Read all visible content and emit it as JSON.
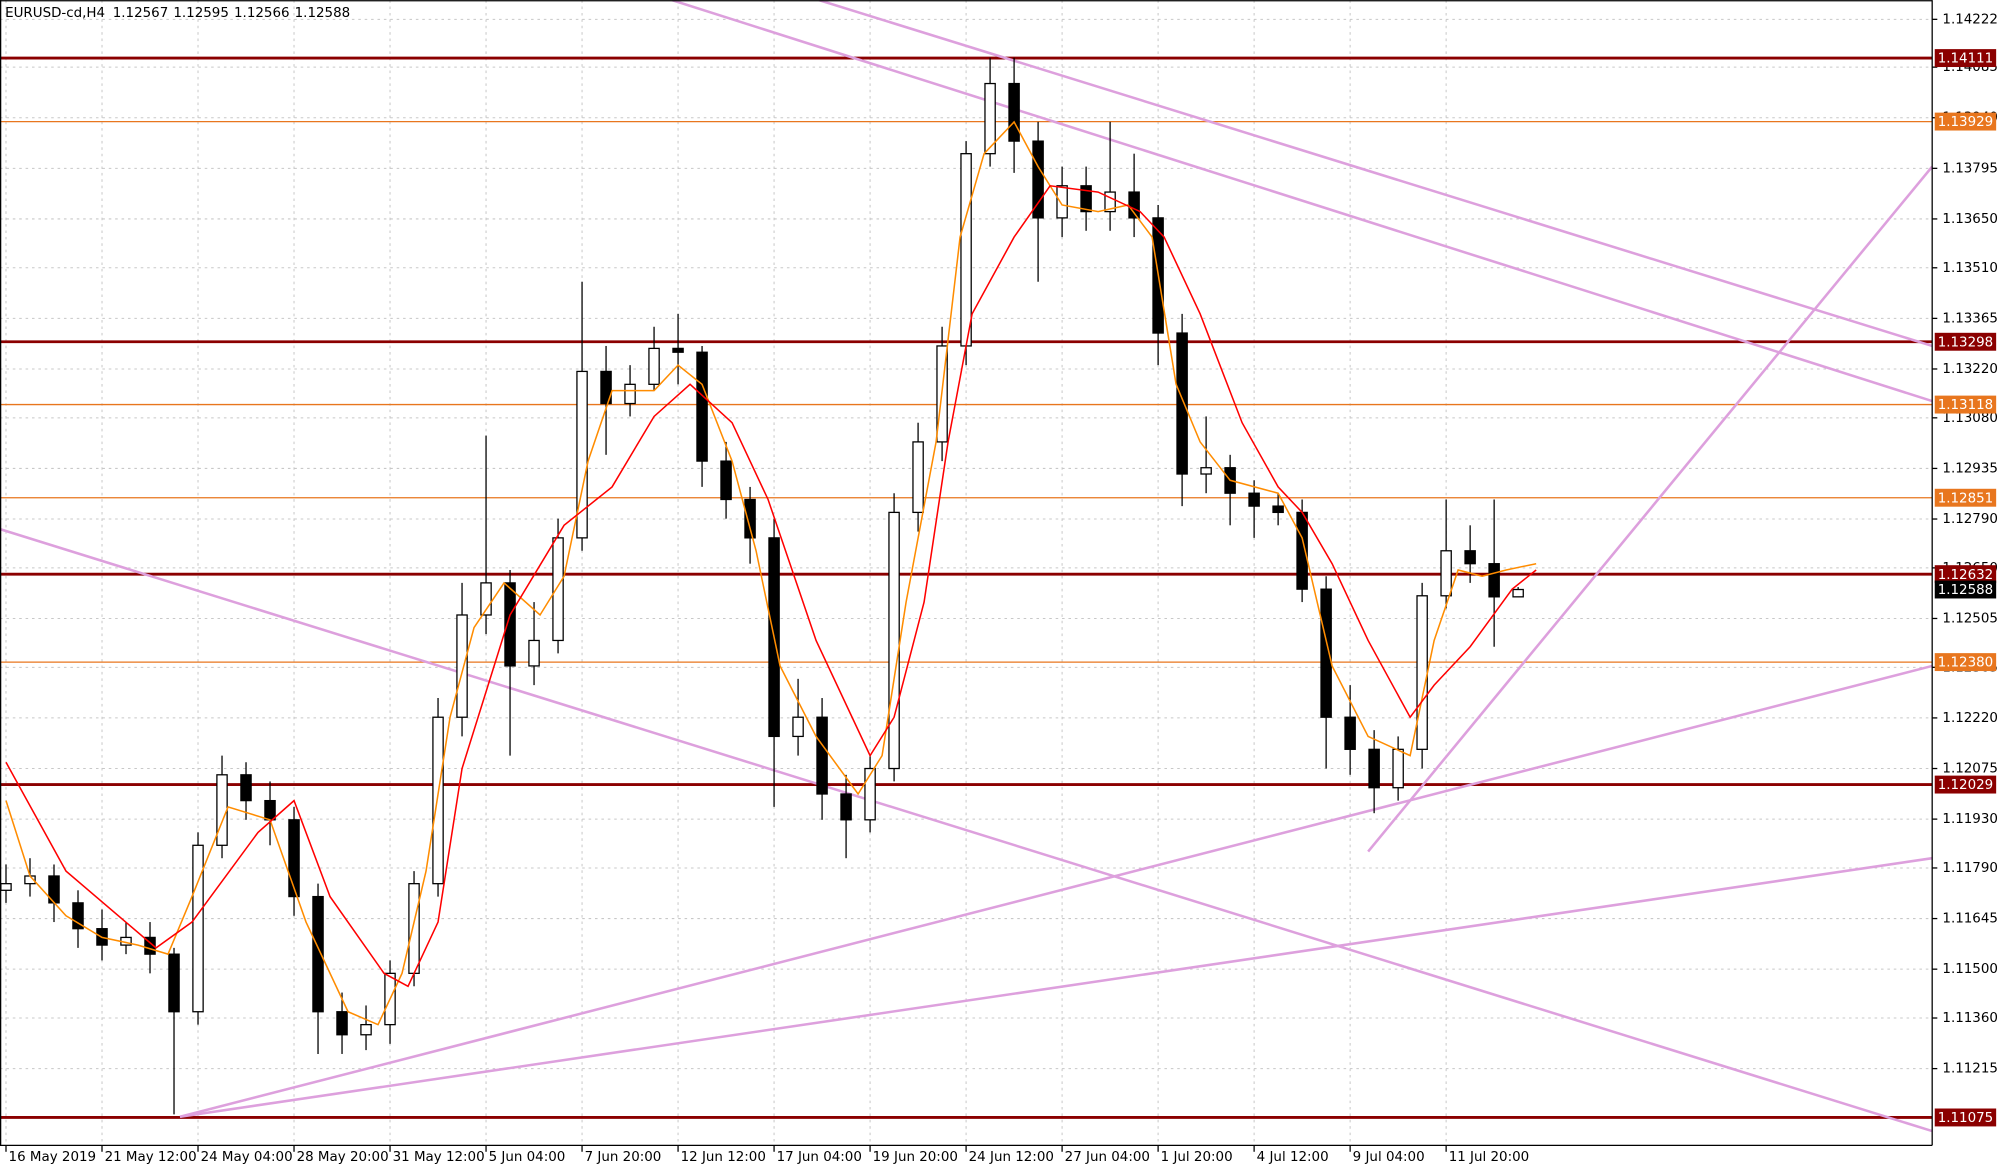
{
  "chart_data": {
    "type": "candlestick",
    "title": "EURUSD-cd,H4",
    "up_color": "#ffffff",
    "down_color": "#000000",
    "x": [
      0,
      4,
      8,
      12,
      16,
      20,
      24,
      28,
      32,
      36,
      40,
      44,
      48,
      52,
      56,
      60,
      64,
      68,
      72,
      76,
      80,
      84,
      88,
      92,
      96,
      100,
      104,
      108,
      112,
      116,
      120,
      124,
      128,
      132,
      136,
      140,
      144,
      148,
      152,
      156,
      160,
      164,
      168,
      172,
      176,
      180,
      184,
      188,
      192,
      196,
      200,
      204,
      208,
      212,
      216,
      220,
      224,
      228,
      232,
      236,
      240,
      244,
      248,
      252
    ],
    "open": [
      1.11726,
      1.11745,
      1.11767,
      1.1169,
      1.11616,
      1.11569,
      1.11591,
      1.11543,
      1.11378,
      1.11855,
      1.12057,
      1.11983,
      1.11928,
      1.11708,
      1.11378,
      1.11312,
      1.11341,
      1.11488,
      1.11745,
      1.12222,
      1.12515,
      1.12607,
      1.12369,
      1.12442,
      1.12736,
      1.13213,
      1.13121,
      1.13176,
      1.13279,
      1.13268,
      1.12956,
      1.12846,
      1.12736,
      1.12167,
      1.12222,
      1.12002,
      1.11928,
      1.12075,
      1.12809,
      1.13011,
      1.13286,
      1.13837,
      1.14038,
      1.13873,
      1.13653,
      1.13745,
      1.13671,
      1.13727,
      1.13653,
      1.13323,
      1.12919,
      1.12937,
      1.12864,
      1.12827,
      1.12809,
      1.12589,
      1.12222,
      1.1213,
      1.1202,
      1.1213,
      1.1257,
      1.12699,
      1.12662,
      1.12567
    ],
    "high": [
      1.118,
      1.11818,
      1.118,
      1.11726,
      1.11671,
      1.11635,
      1.11635,
      1.11561,
      1.11892,
      1.12112,
      1.12093,
      1.12038,
      1.11965,
      1.11745,
      1.11433,
      1.11396,
      1.11525,
      1.11781,
      1.12277,
      1.12607,
      1.13029,
      1.12644,
      1.12552,
      1.12791,
      1.1347,
      1.13286,
      1.13231,
      1.13341,
      1.13378,
      1.13286,
      1.13011,
      1.12882,
      1.12791,
      1.12332,
      1.12277,
      1.12057,
      1.12112,
      1.12864,
      1.13066,
      1.13341,
      1.13873,
      1.14112,
      1.14112,
      1.13928,
      1.138,
      1.138,
      1.13928,
      1.13837,
      1.1369,
      1.13378,
      1.13084,
      1.12974,
      1.12901,
      1.12864,
      1.12846,
      1.12626,
      1.12314,
      1.12185,
      1.12167,
      1.12607,
      1.12846,
      1.12772,
      1.12846,
      1.12595
    ],
    "low": [
      1.1169,
      1.11708,
      1.11635,
      1.11561,
      1.11525,
      1.11543,
      1.11488,
      1.11084,
      1.11341,
      1.11818,
      1.11928,
      1.11855,
      1.11653,
      1.11257,
      1.11257,
      1.11268,
      1.11286,
      1.11451,
      1.11708,
      1.12167,
      1.1246,
      1.12112,
      1.12314,
      1.12405,
      1.12699,
      1.12974,
      1.13084,
      1.13158,
      1.13176,
      1.12882,
      1.12791,
      1.12662,
      1.11965,
      1.12112,
      1.11928,
      1.11818,
      1.11892,
      1.12038,
      1.12754,
      1.12956,
      1.13231,
      1.138,
      1.13782,
      1.1347,
      1.13598,
      1.13616,
      1.13616,
      1.13598,
      1.13231,
      1.12827,
      1.12864,
      1.12772,
      1.12736,
      1.12772,
      1.12552,
      1.12075,
      1.12057,
      1.11947,
      1.11983,
      1.12075,
      1.12534,
      1.12607,
      1.12424,
      1.12566
    ],
    "close": [
      1.11745,
      1.11767,
      1.1169,
      1.11616,
      1.11569,
      1.11591,
      1.11543,
      1.11378,
      1.11855,
      1.12057,
      1.11983,
      1.11928,
      1.11708,
      1.11378,
      1.11312,
      1.11341,
      1.11488,
      1.11745,
      1.12222,
      1.12515,
      1.12607,
      1.12369,
      1.12442,
      1.12736,
      1.13213,
      1.13121,
      1.13176,
      1.13279,
      1.13268,
      1.12956,
      1.12846,
      1.12736,
      1.12167,
      1.12222,
      1.12002,
      1.11928,
      1.12075,
      1.12809,
      1.13011,
      1.13286,
      1.13837,
      1.14038,
      1.13873,
      1.13653,
      1.13745,
      1.13671,
      1.13727,
      1.13653,
      1.13323,
      1.12919,
      1.12937,
      1.12864,
      1.12827,
      1.12809,
      1.12589,
      1.12222,
      1.1213,
      1.1202,
      1.1213,
      1.1257,
      1.12699,
      1.12662,
      1.12567,
      1.12588
    ],
    "lines": [
      {
        "color": "#ff8c00",
        "x": [
          0,
          4,
          10,
          16,
          22,
          27,
          31,
          37,
          44,
          50,
          57,
          62,
          66,
          70,
          74,
          78,
          83,
          89,
          93,
          97,
          101,
          108,
          112,
          116,
          121,
          125,
          129,
          135,
          142,
          146,
          150,
          155,
          159,
          163,
          168,
          172,
          176,
          182,
          187,
          191,
          195,
          199,
          204,
          212,
          216,
          221,
          227,
          234,
          238,
          242,
          246,
          250,
          255
        ],
        "values": [
          1.11983,
          1.11767,
          1.11653,
          1.11591,
          1.11569,
          1.11543,
          1.11708,
          1.11965,
          1.11928,
          1.11635,
          1.11378,
          1.11341,
          1.11488,
          1.11781,
          1.12222,
          1.12479,
          1.12607,
          1.12515,
          1.12626,
          1.12956,
          1.13158,
          1.13158,
          1.13231,
          1.13176,
          1.12956,
          1.12699,
          1.12369,
          1.12167,
          1.12002,
          1.12112,
          1.12552,
          1.13011,
          1.13598,
          1.13837,
          1.13928,
          1.138,
          1.1369,
          1.13671,
          1.1369,
          1.13598,
          1.13176,
          1.13011,
          1.12901,
          1.12864,
          1.12736,
          1.12369,
          1.12167,
          1.12112,
          1.12442,
          1.12644,
          1.12626,
          1.12644,
          1.12662
        ]
      },
      {
        "color": "#ff0000",
        "x": [
          0,
          10,
          25,
          31,
          42,
          48,
          54,
          63,
          67,
          72,
          76,
          84,
          93,
          101,
          108,
          114,
          121,
          127,
          135,
          144,
          148,
          153,
          157,
          161,
          168,
          174,
          182,
          189,
          193,
          199,
          206,
          212,
          216,
          221,
          227,
          234,
          238,
          244,
          251,
          255
        ],
        "values": [
          1.12093,
          1.11781,
          1.11561,
          1.11635,
          1.11892,
          1.11983,
          1.11708,
          1.11488,
          1.11451,
          1.11635,
          1.12075,
          1.12515,
          1.12772,
          1.12882,
          1.13084,
          1.13176,
          1.13066,
          1.12846,
          1.12442,
          1.12112,
          1.12222,
          1.12552,
          1.13011,
          1.13378,
          1.13598,
          1.13745,
          1.13727,
          1.13671,
          1.13598,
          1.13378,
          1.13066,
          1.12882,
          1.12809,
          1.12662,
          1.12442,
          1.12222,
          1.12314,
          1.12424,
          1.12589,
          1.12644
        ]
      }
    ],
    "trendlines": [
      {
        "color": "#dda0dd",
        "x": [
          111,
          321
        ],
        "values": [
          1.14277,
          1.13128
        ]
      },
      {
        "color": "#dda0dd",
        "x": [
          135.5,
          321
        ],
        "values": [
          1.14277,
          1.13286
        ]
      },
      {
        "color": "#dda0dd",
        "x": [
          -1,
          321
        ],
        "values": [
          1.12761,
          1.11036
        ]
      },
      {
        "color": "#dda0dd",
        "x": [
          29,
          321
        ],
        "values": [
          1.11077,
          1.12369
        ]
      },
      {
        "color": "#dda0dd",
        "x": [
          29,
          321
        ],
        "values": [
          1.11077,
          1.11818
        ]
      },
      {
        "color": "#dda0dd",
        "x": [
          227,
          321
        ],
        "values": [
          1.11837,
          1.138
        ]
      }
    ],
    "levels": [
      {
        "color": "#8b0000",
        "price": 1.14111
      },
      {
        "color": "#e8761e",
        "price": 1.13929
      },
      {
        "color": "#8b0000",
        "price": 1.13298
      },
      {
        "color": "#e8761e",
        "price": 1.13118
      },
      {
        "color": "#e8761e",
        "price": 1.12851
      },
      {
        "color": "#8b0000",
        "price": 1.12632
      },
      {
        "color": "#e8761e",
        "price": {
          "value": 1.1238,
          "label": "1.12380"
        }
      },
      {
        "color": "#8b0000",
        "price": 1.12029
      },
      {
        "color": "#8b0000",
        "price": 1.11075
      }
    ],
    "xlim": [
      -1,
      321
    ],
    "ylim": [
      1.10995,
      1.14277
    ],
    "xticks": [
      {
        "value": 0,
        "label": "16 May 2019"
      },
      {
        "value": 16,
        "label": "21 May 12:00"
      },
      {
        "value": 32,
        "label": "24 May 04:00"
      },
      {
        "value": 48,
        "label": "28 May 20:00"
      },
      {
        "value": 64,
        "label": "31 May 12:00"
      },
      {
        "value": 80,
        "label": "5 Jun 04:00"
      },
      {
        "value": 96,
        "label": "7 Jun 20:00"
      },
      {
        "value": 112,
        "label": "12 Jun 12:00"
      },
      {
        "value": 128,
        "label": "17 Jun 04:00"
      },
      {
        "value": 144,
        "label": "19 Jun 20:00"
      },
      {
        "value": 160,
        "label": "24 Jun 12:00"
      },
      {
        "value": 176,
        "label": "27 Jun 04:00"
      },
      {
        "value": 192,
        "label": "1 Jul 20:00"
      },
      {
        "value": 208,
        "label": "4 Jul 12:00"
      },
      {
        "value": 224,
        "label": "9 Jul 04:00"
      },
      {
        "value": 240,
        "label": "11 Jul 20:00"
      }
    ],
    "yticks": [
      1.14222,
      1.14085,
      {
        "value": 1.1394,
        "label": "1.13940"
      },
      1.13795,
      {
        "value": 1.1365,
        "label": "1.13650"
      },
      {
        "value": 1.1351,
        "label": "1.13510"
      },
      1.13365,
      {
        "value": 1.1322,
        "label": "1.13220"
      },
      {
        "value": 1.1308,
        "label": "1.13080"
      },
      1.12935,
      {
        "value": 1.1279,
        "label": "1.12790"
      },
      {
        "value": 1.1265,
        "label": "1.12650"
      },
      1.12505,
      1.12365,
      {
        "value": 1.1222,
        "label": "1.12220"
      },
      1.12075,
      {
        "value": 1.1193,
        "label": "1.11930"
      },
      {
        "value": 1.1179,
        "label": "1.11790"
      },
      1.11645,
      {
        "value": 1.115,
        "label": "1.11500"
      },
      {
        "value": 1.1136,
        "label": "1.11360"
      },
      1.11215
    ],
    "grid": true
  }
}
